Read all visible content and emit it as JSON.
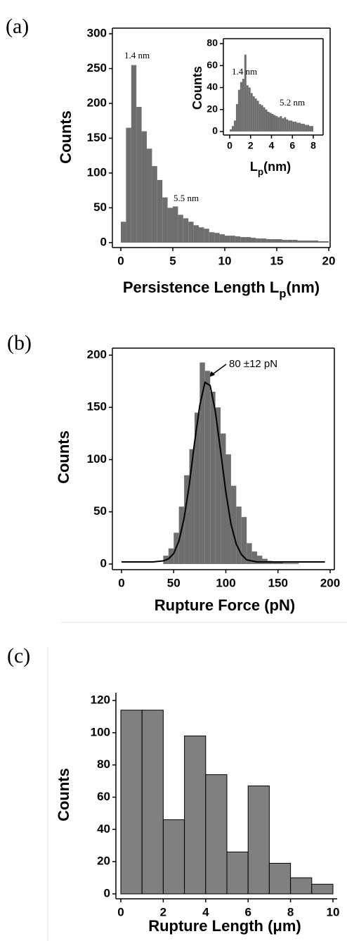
{
  "chart_data": [
    {
      "type": "histogram",
      "panel_label": "(a)",
      "y_label": "Counts",
      "x_label": [
        "Persistence Length L",
        "p",
        "(nm)"
      ],
      "bins": [
        0,
        0.5,
        1,
        1.5,
        2,
        2.5,
        3,
        3.5,
        4,
        4.5,
        5,
        5.5,
        6,
        6.5,
        7,
        7.5,
        8,
        8.5,
        9,
        9.5,
        10,
        10.5,
        11,
        11.5,
        12,
        12.5,
        13,
        13.5,
        14,
        14.5,
        15,
        15.5,
        16,
        16.5,
        17,
        17.5,
        18,
        18.5,
        19,
        19.5,
        20
      ],
      "values": [
        30,
        165,
        255,
        195,
        160,
        135,
        110,
        90,
        65,
        50,
        52,
        40,
        35,
        30,
        25,
        22,
        20,
        15,
        14,
        12,
        10,
        10,
        9,
        8,
        8,
        7,
        6,
        6,
        5,
        5,
        5,
        4,
        4,
        4,
        3,
        3,
        3,
        3,
        2,
        2
      ],
      "color": "#6e6e6e",
      "xlim": [
        0,
        20
      ],
      "xticks": [
        0,
        5,
        10,
        15,
        20
      ],
      "ylim": [
        0,
        300
      ],
      "yticks": [
        0,
        50,
        100,
        150,
        200,
        250,
        300
      ],
      "annotations": [
        "1.4 nm",
        "5.5 nm"
      ]
    },
    {
      "type": "histogram",
      "y_label": "Counts",
      "x_label": [
        "L",
        "p",
        "(nm)"
      ],
      "bins": [
        0,
        0.2,
        0.4,
        0.6,
        0.8,
        1,
        1.2,
        1.4,
        1.6,
        1.8,
        2,
        2.2,
        2.4,
        2.6,
        2.8,
        3,
        3.2,
        3.4,
        3.6,
        3.8,
        4,
        4.2,
        4.4,
        4.6,
        4.8,
        5,
        5.2,
        5.4,
        5.6,
        5.8,
        6,
        6.2,
        6.4,
        6.6,
        6.8,
        7,
        7.2,
        7.4,
        7.6,
        7.8,
        8
      ],
      "values": [
        2,
        5,
        10,
        25,
        38,
        45,
        48,
        70,
        42,
        40,
        35,
        32,
        30,
        28,
        25,
        24,
        22,
        20,
        18,
        17,
        16,
        15,
        14,
        13,
        14,
        12,
        13,
        11,
        10,
        10,
        9,
        9,
        8,
        8,
        7,
        7,
        6,
        6,
        5,
        5
      ],
      "color": "#6e6e6e",
      "xlim": [
        0,
        8
      ],
      "xticks": [
        0,
        2,
        4,
        6,
        8
      ],
      "ylim": [
        0,
        80
      ],
      "yticks": [
        0,
        20,
        40,
        60,
        80
      ],
      "annotations": [
        "1.4 nm",
        "5.2 nm"
      ]
    },
    {
      "type": "histogram",
      "panel_label": "(b)",
      "y_label": "Counts",
      "x_label": "Rupture Force (pN)",
      "bins": [
        40,
        45,
        50,
        55,
        60,
        65,
        70,
        75,
        80,
        85,
        90,
        95,
        100,
        105,
        110,
        115,
        120,
        125,
        130,
        135,
        140,
        145,
        150,
        155,
        160,
        165,
        170
      ],
      "values": [
        8,
        15,
        30,
        55,
        85,
        110,
        145,
        193,
        185,
        165,
        150,
        125,
        105,
        75,
        55,
        45,
        20,
        12,
        8,
        5,
        3,
        2,
        2,
        1,
        1,
        1
      ],
      "color": "#6e6e6e",
      "xlim": [
        0,
        200
      ],
      "xticks": [
        0,
        50,
        100,
        150,
        200
      ],
      "ylim": [
        0,
        200
      ],
      "yticks": [
        0,
        50,
        100,
        150,
        200
      ],
      "fit": {
        "color": "#000000",
        "x": [
          0,
          10,
          20,
          30,
          40,
          45,
          50,
          55,
          60,
          65,
          70,
          75,
          80,
          85,
          90,
          95,
          100,
          105,
          110,
          115,
          120,
          130,
          150,
          175,
          195
        ],
        "values": [
          2,
          2,
          2,
          2,
          3,
          5,
          10,
          22,
          44,
          76,
          116,
          152,
          174,
          171,
          146,
          108,
          69,
          38,
          19,
          9,
          4,
          2,
          2,
          2,
          2
        ]
      },
      "annotations": [
        "80 ±12 pN"
      ]
    },
    {
      "type": "histogram",
      "panel_label": "(c)",
      "y_label": "Counts",
      "x_label": "Rupture Length (μm)",
      "bins": [
        0,
        1,
        2,
        3,
        4,
        5,
        6,
        7,
        8,
        9,
        10
      ],
      "values": [
        114,
        114,
        46,
        98,
        74,
        26,
        67,
        19,
        10,
        6
      ],
      "color": "#808080",
      "edgecolor": "#000000",
      "xlim": [
        0,
        10
      ],
      "xticks": [
        0,
        2,
        4,
        6,
        8,
        10
      ],
      "ylim": [
        0,
        120
      ],
      "yticks": [
        0,
        20,
        40,
        60,
        80,
        100,
        120
      ]
    }
  ]
}
